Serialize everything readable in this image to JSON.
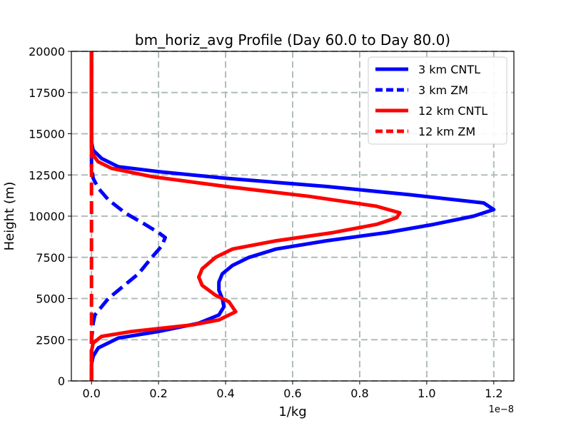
{
  "chart_data": {
    "type": "line",
    "title": "bm_horiz_avg Profile (Day 60.0 to Day 80.0)",
    "xlabel": "1/kg",
    "ylabel": "Height (m)",
    "x_offset_label": "1e−8",
    "xlim": [
      -0.06,
      1.26
    ],
    "ylim": [
      0,
      20000
    ],
    "x_ticks": [
      0.0,
      0.2,
      0.4,
      0.6,
      0.8,
      1.0,
      1.2
    ],
    "x_tick_labels": [
      "0.0",
      "0.2",
      "0.4",
      "0.6",
      "0.8",
      "1.0",
      "1.2"
    ],
    "y_ticks": [
      0,
      2500,
      5000,
      7500,
      10000,
      12500,
      15000,
      17500,
      20000
    ],
    "y_tick_labels": [
      "0",
      "2500",
      "5000",
      "7500",
      "10000",
      "12500",
      "15000",
      "17500",
      "20000"
    ],
    "grid": true,
    "legend_position": "top-right",
    "series": [
      {
        "name": "3 km CNTL",
        "color": "#0000ff",
        "style": "solid",
        "points": [
          [
            0.0,
            0
          ],
          [
            0.0,
            1000
          ],
          [
            0.005,
            1500
          ],
          [
            0.02,
            2000
          ],
          [
            0.08,
            2600
          ],
          [
            0.2,
            3000
          ],
          [
            0.32,
            3500
          ],
          [
            0.38,
            4000
          ],
          [
            0.395,
            4500
          ],
          [
            0.39,
            5000
          ],
          [
            0.38,
            5500
          ],
          [
            0.38,
            6000
          ],
          [
            0.39,
            6500
          ],
          [
            0.42,
            7000
          ],
          [
            0.47,
            7500
          ],
          [
            0.55,
            8000
          ],
          [
            0.7,
            8500
          ],
          [
            0.88,
            9000
          ],
          [
            1.02,
            9500
          ],
          [
            1.14,
            10000
          ],
          [
            1.2,
            10400
          ],
          [
            1.17,
            10800
          ],
          [
            0.95,
            11300
          ],
          [
            0.7,
            11800
          ],
          [
            0.4,
            12300
          ],
          [
            0.2,
            12700
          ],
          [
            0.08,
            13000
          ],
          [
            0.03,
            13500
          ],
          [
            0.005,
            14000
          ],
          [
            0.0,
            14500
          ],
          [
            0.0,
            20000
          ]
        ]
      },
      {
        "name": "3 km ZM",
        "color": "#0000ff",
        "style": "dashed",
        "points": [
          [
            0.0,
            0
          ],
          [
            0.0,
            2500
          ],
          [
            0.005,
            3500
          ],
          [
            0.01,
            4000
          ],
          [
            0.03,
            4500
          ],
          [
            0.05,
            5000
          ],
          [
            0.08,
            5500
          ],
          [
            0.11,
            6000
          ],
          [
            0.14,
            6500
          ],
          [
            0.18,
            7500
          ],
          [
            0.21,
            8200
          ],
          [
            0.22,
            8700
          ],
          [
            0.2,
            9000
          ],
          [
            0.16,
            9500
          ],
          [
            0.1,
            10200
          ],
          [
            0.05,
            11000
          ],
          [
            0.02,
            11700
          ],
          [
            0.005,
            12300
          ],
          [
            0.0,
            13000
          ],
          [
            0.0,
            20000
          ]
        ]
      },
      {
        "name": "12 km CNTL",
        "color": "#ff0000",
        "style": "solid",
        "points": [
          [
            0.0,
            0
          ],
          [
            0.0,
            1800
          ],
          [
            0.005,
            2300
          ],
          [
            0.03,
            2700
          ],
          [
            0.12,
            3000
          ],
          [
            0.3,
            3400
          ],
          [
            0.38,
            3700
          ],
          [
            0.43,
            4200
          ],
          [
            0.41,
            4800
          ],
          [
            0.37,
            5200
          ],
          [
            0.33,
            5800
          ],
          [
            0.32,
            6300
          ],
          [
            0.33,
            6800
          ],
          [
            0.37,
            7500
          ],
          [
            0.42,
            8000
          ],
          [
            0.55,
            8500
          ],
          [
            0.72,
            9000
          ],
          [
            0.85,
            9500
          ],
          [
            0.91,
            9900
          ],
          [
            0.92,
            10200
          ],
          [
            0.85,
            10600
          ],
          [
            0.65,
            11200
          ],
          [
            0.4,
            11800
          ],
          [
            0.18,
            12400
          ],
          [
            0.06,
            12900
          ],
          [
            0.02,
            13300
          ],
          [
            0.005,
            13700
          ],
          [
            0.0,
            14000
          ],
          [
            0.0,
            20000
          ]
        ]
      },
      {
        "name": "12 km ZM",
        "color": "#ff0000",
        "style": "dashed",
        "points": [
          [
            0.0,
            0
          ],
          [
            0.0,
            20000
          ]
        ]
      }
    ]
  }
}
